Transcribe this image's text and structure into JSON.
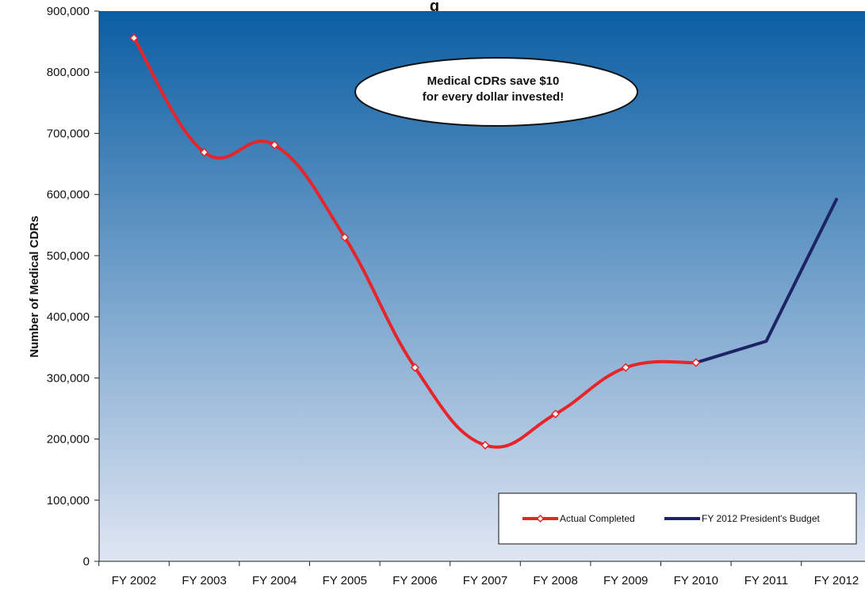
{
  "chart_data": {
    "type": "line",
    "title_visible_fragment": "g",
    "ylabel": "Number of Medical CDRs",
    "xlabel": "",
    "categories": [
      "FY 2002",
      "FY 2003",
      "FY 2004",
      "FY 2005",
      "FY 2006",
      "FY 2007",
      "FY 2008",
      "FY 2009",
      "FY 2010",
      "FY 2011",
      "FY 2012"
    ],
    "ylim": [
      0,
      900000
    ],
    "yticks": [
      "0",
      "100,000",
      "200,000",
      "300,000",
      "400,000",
      "500,000",
      "600,000",
      "700,000",
      "800,000",
      "900,000"
    ],
    "ytick_values": [
      0,
      100000,
      200000,
      300000,
      400000,
      500000,
      600000,
      700000,
      800000,
      900000
    ],
    "series": [
      {
        "name": "Actual Completed",
        "color": "#e8242b",
        "marker": "diamond",
        "x": [
          "FY 2002",
          "FY 2003",
          "FY 2004",
          "FY 2005",
          "FY 2006",
          "FY 2007",
          "FY 2008",
          "FY 2009",
          "FY 2010"
        ],
        "values": [
          856000,
          669000,
          681000,
          530000,
          317000,
          190000,
          241000,
          317000,
          325000
        ]
      },
      {
        "name": "FY 2012 President's Budget",
        "color": "#1d2466",
        "marker": "none",
        "x": [
          "FY 2010",
          "FY 2011",
          "FY 2012"
        ],
        "values": [
          325000,
          360000,
          592000
        ]
      }
    ],
    "annotation": {
      "line1": "Medical CDRs save $10",
      "line2": "for every dollar invested!"
    },
    "legend_placement": "bottom-right",
    "background_gradient": [
      "#0a5ea3",
      "#dfe6f3"
    ],
    "grid": false
  }
}
